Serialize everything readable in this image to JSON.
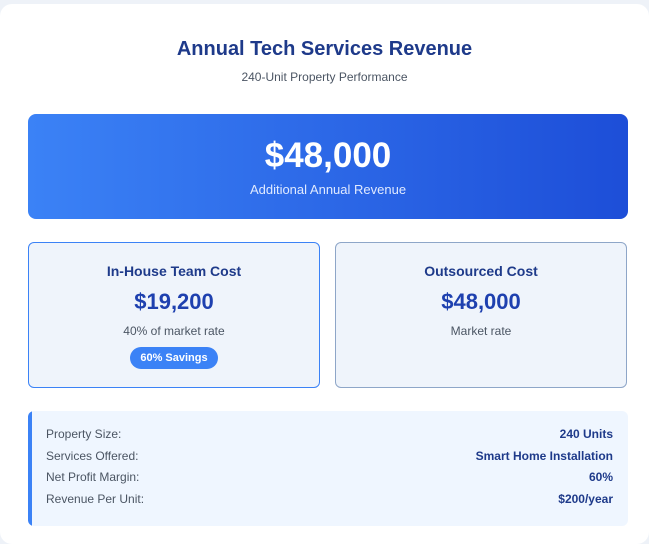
{
  "header": {
    "title": "Annual Tech Services Revenue",
    "subtitle": "240-Unit Property Performance"
  },
  "hero": {
    "amount": "$48,000",
    "label": "Additional Annual Revenue"
  },
  "in_house": {
    "title": "In-House Team Cost",
    "amount": "$19,200",
    "note": "40% of market rate",
    "badge": "60% Savings"
  },
  "outsourced": {
    "title": "Outsourced Cost",
    "amount": "$48,000",
    "note": "Market rate"
  },
  "details": {
    "rows": [
      {
        "label": "Property Size:",
        "value": "240 Units"
      },
      {
        "label": "Services Offered:",
        "value": "Smart Home Installation"
      },
      {
        "label": "Net Profit Margin:",
        "value": "60%"
      },
      {
        "label": "Revenue Per Unit:",
        "value": "$200/year"
      }
    ]
  },
  "colors": {
    "primary": "#3b82f6",
    "primary_dark": "#1d4ed8",
    "heading": "#1e3a8a",
    "panel_bg": "#eff4fb"
  }
}
